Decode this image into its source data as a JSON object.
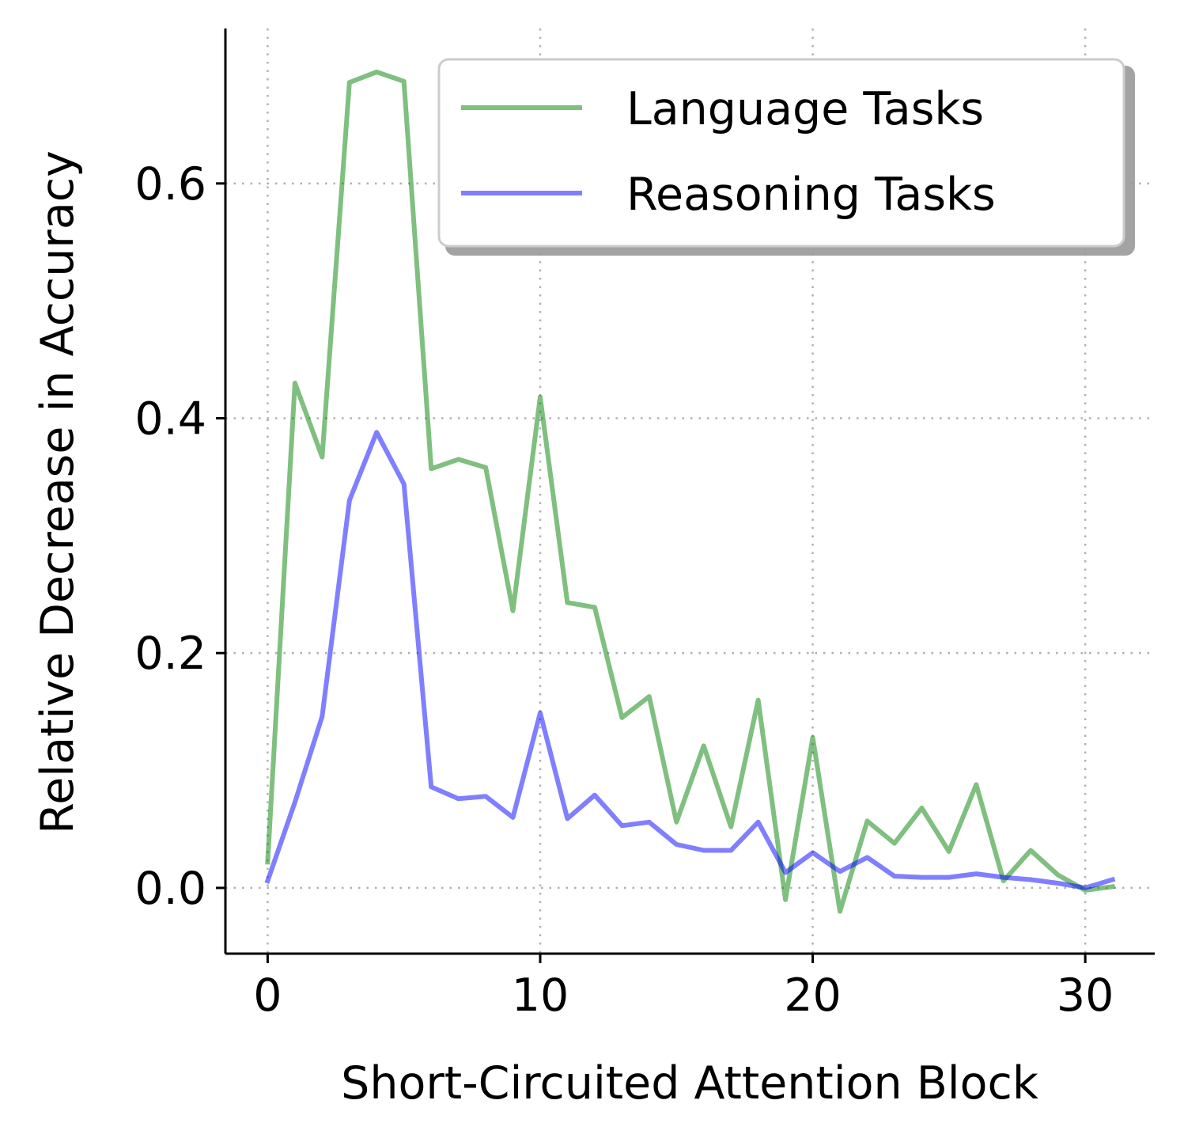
{
  "chart_data": {
    "type": "line",
    "title": "",
    "xlabel": "Short-Circuited Attention Block",
    "ylabel": "Relative Decrease in Accuracy",
    "xlim": [
      -1.55,
      32.55
    ],
    "ylim": [
      -0.056,
      0.732
    ],
    "xticks": [
      0,
      10,
      20,
      30
    ],
    "yticks": [
      0.0,
      0.2,
      0.4,
      0.6
    ],
    "xtick_labels": [
      "0",
      "10",
      "20",
      "30"
    ],
    "ytick_labels": [
      "0.0",
      "0.2",
      "0.4",
      "0.6"
    ],
    "grid": true,
    "legend_position": "upper right",
    "x": [
      0,
      1,
      2,
      3,
      4,
      5,
      6,
      7,
      8,
      9,
      10,
      11,
      12,
      13,
      14,
      15,
      16,
      17,
      18,
      19,
      20,
      21,
      22,
      23,
      24,
      25,
      26,
      27,
      28,
      29,
      30,
      31
    ],
    "series": [
      {
        "name": "Language Tasks",
        "color": "#008000",
        "opacity": 0.5,
        "values": [
          0.022,
          0.43,
          0.367,
          0.686,
          0.695,
          0.687,
          0.357,
          0.365,
          0.358,
          0.236,
          0.418,
          0.243,
          0.239,
          0.145,
          0.163,
          0.056,
          0.121,
          0.052,
          0.16,
          -0.01,
          0.128,
          -0.02,
          0.057,
          0.038,
          0.068,
          0.031,
          0.088,
          0.006,
          0.032,
          0.011,
          -0.002,
          0.001
        ]
      },
      {
        "name": "Reasoning Tasks",
        "color": "#0000ff",
        "opacity": 0.5,
        "values": [
          0.006,
          0.073,
          0.146,
          0.33,
          0.388,
          0.344,
          0.086,
          0.076,
          0.078,
          0.06,
          0.149,
          0.059,
          0.079,
          0.053,
          0.056,
          0.037,
          0.032,
          0.032,
          0.056,
          0.013,
          0.03,
          0.014,
          0.026,
          0.01,
          0.009,
          0.009,
          0.012,
          0.009,
          0.007,
          0.004,
          0.0,
          0.007
        ]
      }
    ]
  }
}
